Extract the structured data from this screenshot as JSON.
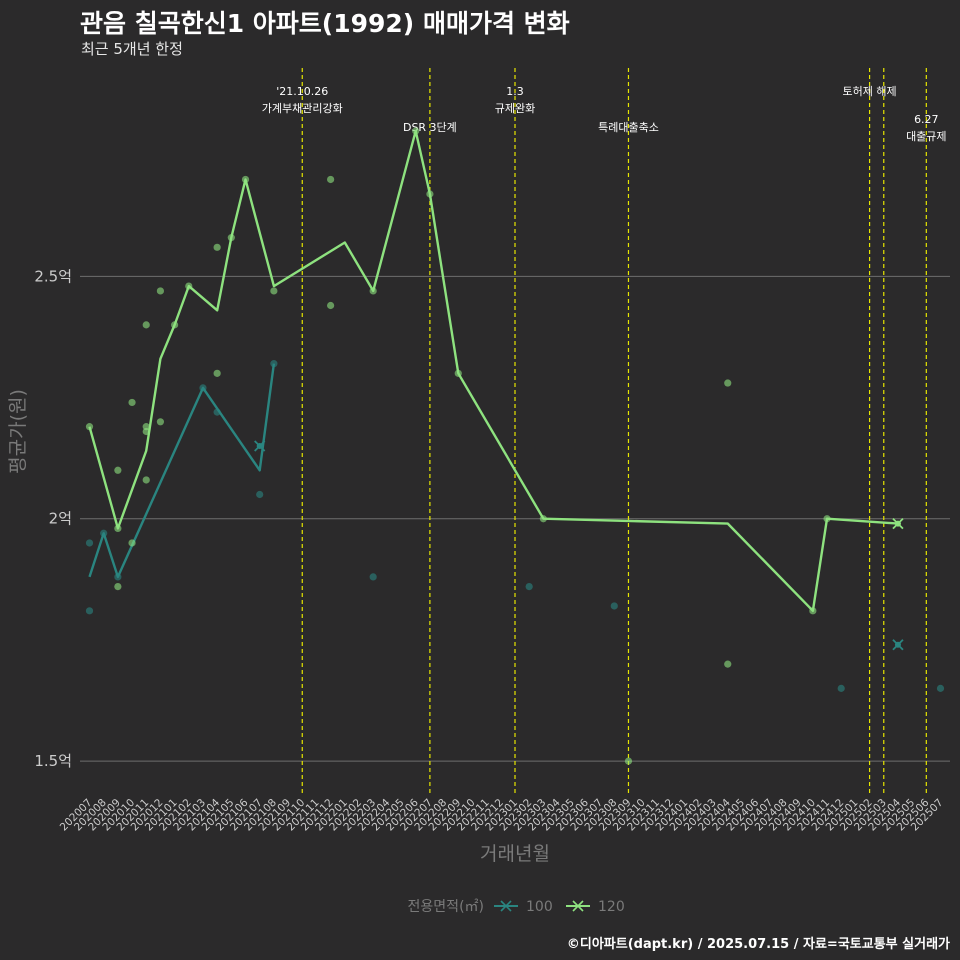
{
  "title": "관음 칠곡한신1 아파트(1992) 매매가격 변화",
  "subtitle": "최근 5개년 한정",
  "footer": "©디아파트(dapt.kr) / 2025.07.15 / 자료=국토교통부 실거래가",
  "colors": {
    "background": "#2b2a2b",
    "series_100": "#2a8580",
    "series_120": "#8ee27f",
    "event_line": "#e6e600",
    "grid": "#6e6e6e",
    "axis_text": "#cccccc",
    "axis_title": "#7a7a7a"
  },
  "chart_data": {
    "type": "line",
    "xlabel": "거래년월",
    "ylabel": "평균가(원)",
    "ylim": [
      1.43,
      2.93
    ],
    "y_unit": "억",
    "y_ticks": [
      {
        "value": 1.5,
        "label": "1.5억"
      },
      {
        "value": 2.0,
        "label": "2억"
      },
      {
        "value": 2.5,
        "label": "2.5억"
      }
    ],
    "grid": true,
    "legend": {
      "title": "전용면적(㎡)",
      "placement": "bottom"
    },
    "categories": [
      "202007",
      "202008",
      "202009",
      "202010",
      "202011",
      "202012",
      "202101",
      "202102",
      "202103",
      "202104",
      "202105",
      "202106",
      "202107",
      "202108",
      "202109",
      "202110",
      "202111",
      "202112",
      "202201",
      "202202",
      "202203",
      "202204",
      "202205",
      "202206",
      "202207",
      "202208",
      "202209",
      "202210",
      "202211",
      "202212",
      "202301",
      "202302",
      "202303",
      "202304",
      "202305",
      "202306",
      "202307",
      "202308",
      "202309",
      "202310",
      "202311",
      "202312",
      "202401",
      "202402",
      "202403",
      "202404",
      "202405",
      "202406",
      "202407",
      "202408",
      "202409",
      "202410",
      "202411",
      "202412",
      "202501",
      "202502",
      "202503",
      "202504",
      "202505",
      "202506",
      "202507"
    ],
    "series": [
      {
        "name": "100",
        "line": [
          [
            "202007",
            1.88
          ],
          [
            "202008",
            1.97
          ],
          [
            "202009",
            1.88
          ],
          [
            "202103",
            2.27
          ],
          [
            "202107",
            2.1
          ],
          [
            "202108",
            2.32
          ]
        ],
        "points": [
          [
            "202007",
            1.95
          ],
          [
            "202007",
            1.81
          ],
          [
            "202008",
            1.97
          ],
          [
            "202009",
            1.88
          ],
          [
            "202103",
            2.27
          ],
          [
            "202104",
            2.22
          ],
          [
            "202107",
            2.05
          ],
          [
            "202108",
            2.32
          ],
          [
            "202203",
            1.88
          ],
          [
            "202302",
            1.86
          ],
          [
            "202308",
            1.82
          ],
          [
            "202412",
            1.65
          ],
          [
            "202507",
            1.65
          ]
        ],
        "markers": [
          [
            "202107",
            2.15
          ],
          [
            "202504",
            1.74
          ]
        ]
      },
      {
        "name": "120",
        "line": [
          [
            "202007",
            2.19
          ],
          [
            "202009",
            1.98
          ],
          [
            "202011",
            2.14
          ],
          [
            "202012",
            2.33
          ],
          [
            "202101",
            2.4
          ],
          [
            "202102",
            2.48
          ],
          [
            "202104",
            2.43
          ],
          [
            "202105",
            2.58
          ],
          [
            "202106",
            2.7
          ],
          [
            "202108",
            2.48
          ],
          [
            "202201",
            2.57
          ],
          [
            "202203",
            2.47
          ],
          [
            "202206",
            2.8
          ],
          [
            "202207",
            2.67
          ],
          [
            "202209",
            2.3
          ],
          [
            "202303",
            2.0
          ],
          [
            "202404",
            1.99
          ],
          [
            "202410",
            1.81
          ],
          [
            "202411",
            2.0
          ],
          [
            "202504",
            1.99
          ]
        ],
        "points": [
          [
            "202007",
            2.19
          ],
          [
            "202009",
            2.1
          ],
          [
            "202009",
            1.86
          ],
          [
            "202009",
            1.98
          ],
          [
            "202010",
            2.24
          ],
          [
            "202010",
            1.95
          ],
          [
            "202011",
            2.4
          ],
          [
            "202011",
            2.19
          ],
          [
            "202011",
            2.18
          ],
          [
            "202011",
            2.08
          ],
          [
            "202012",
            2.47
          ],
          [
            "202012",
            2.2
          ],
          [
            "202101",
            2.4
          ],
          [
            "202102",
            2.48
          ],
          [
            "202104",
            2.56
          ],
          [
            "202104",
            2.3
          ],
          [
            "202105",
            2.58
          ],
          [
            "202106",
            2.7
          ],
          [
            "202108",
            2.47
          ],
          [
            "202112",
            2.7
          ],
          [
            "202112",
            2.44
          ],
          [
            "202203",
            2.47
          ],
          [
            "202206",
            2.8
          ],
          [
            "202207",
            2.67
          ],
          [
            "202209",
            2.3
          ],
          [
            "202303",
            2.0
          ],
          [
            "202309",
            1.5
          ],
          [
            "202404",
            2.28
          ],
          [
            "202404",
            1.7
          ],
          [
            "202410",
            1.81
          ],
          [
            "202411",
            2.0
          ]
        ],
        "markers": [
          [
            "202504",
            1.99
          ]
        ]
      }
    ],
    "events": [
      {
        "x": 15.0,
        "lines": [
          "'21.10.26",
          "가계부채관리강화"
        ],
        "level": 1
      },
      {
        "x": 24.0,
        "lines": [
          "DSR 3단계"
        ],
        "level": 2
      },
      {
        "x": 30.0,
        "lines": [
          "1.3",
          "규제완화"
        ],
        "level": 1
      },
      {
        "x": 38.0,
        "lines": [
          "특례대출축소"
        ],
        "level": 2
      },
      {
        "x": 55.0,
        "lines": [
          "토허제 해제"
        ],
        "level": 1
      },
      {
        "x": 56.0,
        "lines": [],
        "level": 0
      },
      {
        "x": 59.0,
        "lines": [
          "6.27",
          "대출규제"
        ],
        "level": 3
      }
    ]
  }
}
